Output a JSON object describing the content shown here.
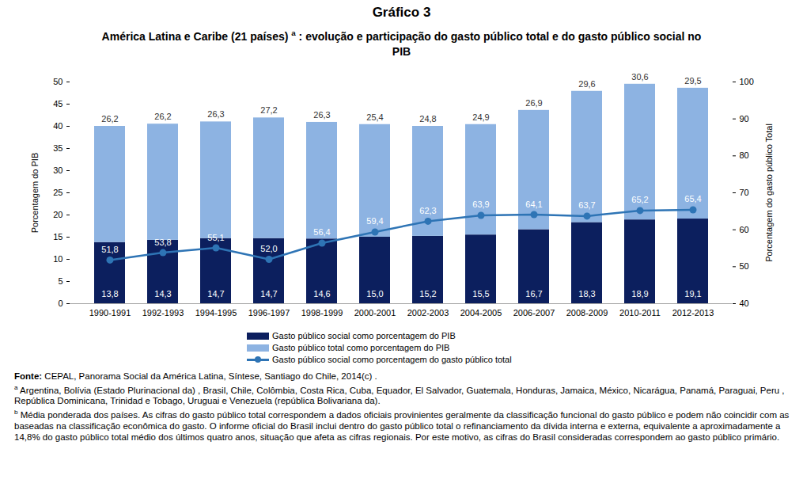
{
  "chart_data": {
    "type": "bar",
    "title": "Gráfico 3",
    "subtitle": [
      "América Latina e Caribe (21 países) ",
      "a",
      " : evolução e participação do gasto público total e do gasto público social no PIB"
    ],
    "categories": [
      "1990-1991",
      "1992-1993",
      "1994-1995",
      "1996-1997",
      "1998-1999",
      "2000-2001",
      "2002-2003",
      "2004-2005",
      "2006-2007",
      "2008-2009",
      "2010-2011",
      "2012-2013"
    ],
    "series": [
      {
        "name": "Gasto público social como porcentagem do PIB",
        "type": "bar",
        "color": "#0c1f5e",
        "values": [
          13.8,
          14.3,
          14.7,
          14.7,
          14.6,
          15.0,
          15.2,
          15.5,
          16.7,
          18.3,
          18.9,
          19.1
        ],
        "value_labels": [
          "13,8",
          "14,3",
          "14,7",
          "14,7",
          "14,6",
          "15,0",
          "15,2",
          "15,5",
          "16,7",
          "18,3",
          "18,9",
          "19,1"
        ]
      },
      {
        "name": "Gasto público total como porcentagem do PIB",
        "type": "bar",
        "color": "#8db3e2",
        "values": [
          26.2,
          26.2,
          26.3,
          27.2,
          26.3,
          25.4,
          24.8,
          24.9,
          26.9,
          29.6,
          30.6,
          29.5
        ],
        "value_labels": [
          "26,2",
          "26,2",
          "26,3",
          "27,2",
          "26,3",
          "25,4",
          "24,8",
          "24,9",
          "26,9",
          "29,6",
          "30,6",
          "29,5"
        ]
      },
      {
        "name": "Gasto público social como porcentagem do gasto público total",
        "type": "line",
        "axis": "y2",
        "color": "#2e74b5",
        "marker": "circle",
        "values": [
          51.8,
          53.8,
          55.1,
          52.0,
          56.4,
          59.4,
          62.3,
          63.9,
          64.1,
          63.7,
          65.2,
          65.4
        ],
        "value_labels": [
          "51,8",
          "53,8",
          "55,1",
          "52,0",
          "56,4",
          "59,4",
          "62,3",
          "63,9",
          "64,1",
          "63,7",
          "65,2",
          "65,4"
        ]
      }
    ],
    "stacked": true,
    "data_labels": true,
    "grid": false,
    "legend": "bottom",
    "ylabel": "Porcentagem do PIB",
    "ylim": [
      0,
      50
    ],
    "yticks": [
      0,
      5,
      10,
      15,
      20,
      25,
      30,
      35,
      40,
      45,
      50
    ],
    "y2label": "Porcentagem do gasto público Total",
    "y2lim": [
      40,
      100
    ],
    "y2ticks": [
      40,
      50,
      60,
      70,
      80,
      90,
      100
    ],
    "source": {
      "label": "Fonte:",
      "text": " CEPAL, Panorama Social da América Latina, Síntese, Santiago do Chile, 2014(c) ."
    },
    "footnotes": [
      {
        "marker": "a",
        "text": " Argentina, Bolívia  (Estado Plurinacional da) , Brasil, Chile, Colômbia, Costa Rica, Cuba, Equador, El Salvador, Guatemala, Honduras, Jamaica, México, Nicarágua, Panamá, Paraguai, Peru , República Dominicana, Trinidad e Tobago, Uruguai e Venezuela (república Bolivariana da)."
      },
      {
        "marker": "b",
        "text": "  Média ponderada dos países. As cifras do gasto público total correspondem a dados oficiais provinientes geralmente da classificação funcional do gasto público e podem não coincidir com as baseadas na classificação econômica do gasto. O informe oficial do Brasil inclui dentro do gasto público total o refinanciamento da dívida interna e externa, equivalente a aproximadamente a 14,8% do gasto público total médio dos últimos quatro anos, situação que afeta as cifras regionais. Por este motivo, as cifras do Brasil consideradas correspondem ao gasto público primário."
      }
    ]
  }
}
